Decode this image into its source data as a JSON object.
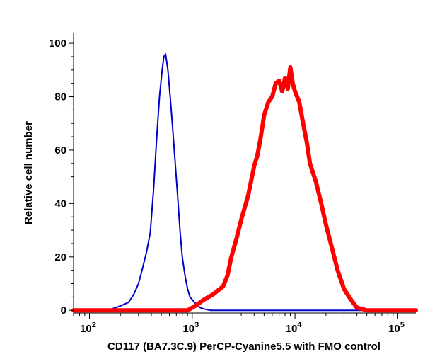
{
  "chart_data": {
    "type": "line",
    "title": "",
    "xlabel": "CD117 (BA7.3C.9) PerCP-Cyanine5.5 with FMO control",
    "ylabel": "Relative cell number",
    "x_scale": "log",
    "xlim": [
      70,
      150000
    ],
    "ylim": [
      -1,
      104
    ],
    "grid": false,
    "legend": "none",
    "x_ticks": [
      {
        "value": 100,
        "base": "10",
        "exp": "2"
      },
      {
        "value": 1000,
        "base": "10",
        "exp": "3"
      },
      {
        "value": 10000,
        "base": "10",
        "exp": "4"
      },
      {
        "value": 100000,
        "base": "10",
        "exp": "5"
      }
    ],
    "y_ticks": [
      {
        "value": 0,
        "label": "0"
      },
      {
        "value": 20,
        "label": "20"
      },
      {
        "value": 40,
        "label": "40"
      },
      {
        "value": 60,
        "label": "60"
      },
      {
        "value": 80,
        "label": "80"
      },
      {
        "value": 100,
        "label": "100"
      }
    ],
    "series": [
      {
        "color": "#0000cc",
        "stroke": "thin",
        "x": [
          70,
          150,
          180,
          210,
          240,
          270,
          300,
          330,
          360,
          390,
          420,
          450,
          480,
          510,
          530,
          550,
          580,
          610,
          640,
          680,
          720,
          760,
          800,
          850,
          900,
          950,
          1000,
          1050,
          1100,
          1200,
          1300,
          1500,
          2000,
          150000
        ],
        "y": [
          0,
          0,
          1,
          2,
          3,
          6,
          10,
          16,
          22,
          29,
          45,
          64,
          80,
          90,
          95,
          96,
          90,
          80,
          70,
          56,
          43,
          30,
          20,
          13,
          8,
          5,
          4,
          3,
          2,
          1,
          0.5,
          0,
          0,
          0
        ]
      },
      {
        "color": "#ff0000",
        "stroke": "thick",
        "x": [
          70,
          900,
          1000,
          1100,
          1300,
          1600,
          2000,
          2200,
          2400,
          2700,
          3000,
          3500,
          4000,
          4300,
          4600,
          5000,
          5500,
          6000,
          6500,
          7000,
          7500,
          8000,
          8500,
          9000,
          9500,
          10000,
          11000,
          12000,
          13000,
          14000,
          16000,
          18000,
          20000,
          23000,
          26000,
          30000,
          35000,
          40000,
          45000,
          50000,
          60000,
          150000
        ],
        "y": [
          0,
          0,
          1,
          2,
          4,
          6,
          9,
          13,
          20,
          27,
          34,
          43,
          54,
          58,
          64,
          73,
          78,
          80,
          85,
          86,
          82,
          87,
          83,
          91,
          85,
          82,
          78,
          70,
          63,
          55,
          48,
          40,
          32,
          23,
          15,
          8,
          4,
          1,
          0.5,
          0,
          0,
          0
        ]
      }
    ]
  }
}
